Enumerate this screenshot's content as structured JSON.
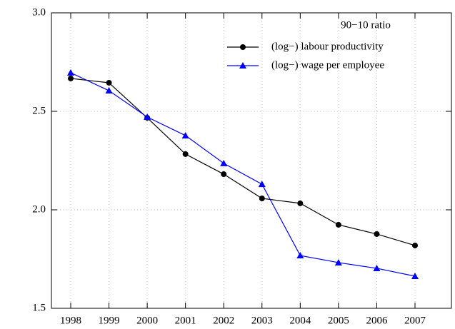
{
  "chart_data": {
    "type": "line",
    "legend_title": "90−10 ratio",
    "categories": [
      "1998",
      "1999",
      "2000",
      "2001",
      "2002",
      "2003",
      "2004",
      "2005",
      "2006",
      "2007"
    ],
    "series": [
      {
        "name": "(log−) labour productivity",
        "color": "#000000",
        "marker": "circle",
        "values": [
          2.667,
          2.645,
          2.467,
          2.283,
          2.181,
          2.058,
          2.033,
          1.924,
          1.877,
          1.819
        ]
      },
      {
        "name": "(log−) wage per employee",
        "color": "#0000ff",
        "marker": "triangle",
        "values": [
          2.696,
          2.605,
          2.471,
          2.377,
          2.236,
          2.13,
          1.768,
          1.732,
          1.703,
          1.663
        ]
      }
    ],
    "ylim": [
      1.5,
      3.0
    ],
    "yticks": [
      1.5,
      {
        "value": 2.0,
        "label": "2.0"
      },
      2.5,
      {
        "value": 3.0,
        "label": "3.0"
      }
    ],
    "grid": true,
    "legend": "upper right"
  }
}
